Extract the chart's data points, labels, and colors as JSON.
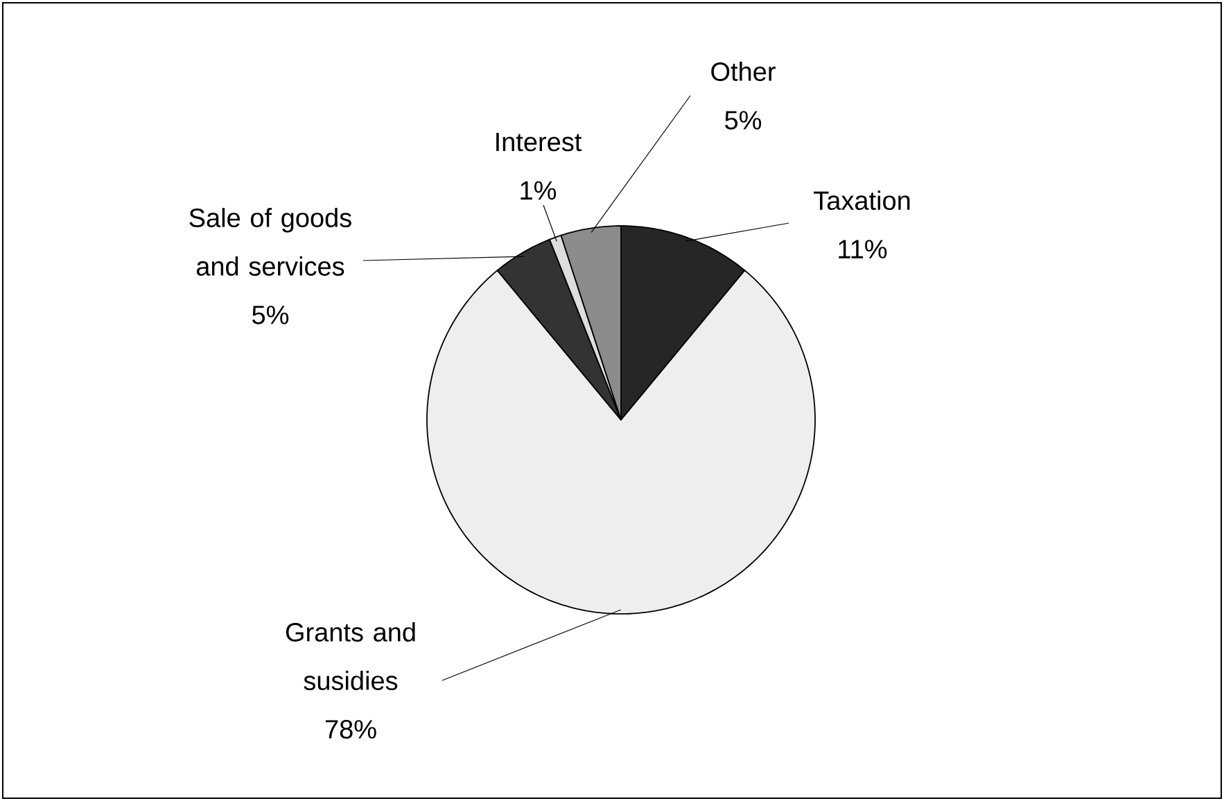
{
  "chart_data": {
    "type": "pie",
    "categories": [
      "Taxation",
      "Grants and susidies",
      "Sale of goods and services",
      "Interest",
      "Other"
    ],
    "values": [
      11,
      78,
      5,
      1,
      5
    ],
    "value_labels": [
      "11%",
      "78%",
      "5%",
      "1%",
      "5%"
    ],
    "colors": [
      "#262626",
      "#eeeeee",
      "#333333",
      "#dddddd",
      "#8c8c8c"
    ]
  }
}
